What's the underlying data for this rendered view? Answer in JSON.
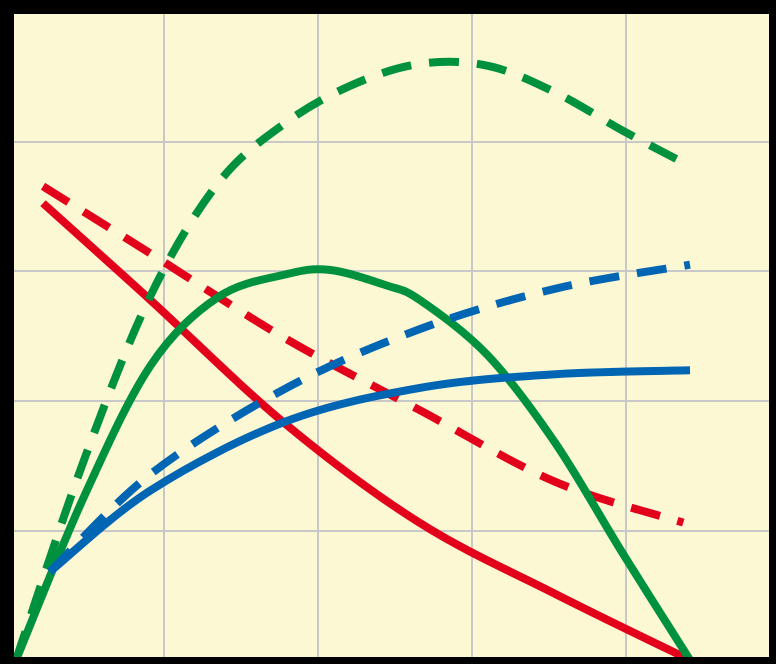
{
  "chart_data": {
    "type": "line",
    "title": "",
    "xlabel": "",
    "ylabel": "",
    "xlim": [
      0,
      1
    ],
    "ylim": [
      0,
      1
    ],
    "grid": true,
    "colors": {
      "background": "#fdf8d4",
      "grid": "#c8c8c8",
      "frame": "#000000",
      "red": "#e3001b",
      "green": "#00913f",
      "blue": "#0066b3"
    },
    "series": [
      {
        "color": "#e3001b",
        "style": "solid",
        "x": [
          0.04,
          0.2,
          0.4,
          0.6,
          0.8,
          1.0
        ],
        "y": [
          0.705,
          0.555,
          0.364,
          0.211,
          0.102,
          0.0
        ]
      },
      {
        "color": "#e3001b",
        "style": "dashed",
        "x": [
          0.04,
          0.2,
          0.4,
          0.6,
          0.8,
          0.99
        ],
        "y": [
          0.731,
          0.627,
          0.496,
          0.385,
          0.275,
          0.212
        ]
      },
      {
        "color": "#00913f",
        "style": "solid",
        "x": [
          0.0,
          0.1,
          0.2,
          0.3,
          0.4,
          0.465,
          0.55,
          0.6,
          0.7,
          0.8,
          0.9,
          1.0
        ],
        "y": [
          0.0,
          0.25,
          0.455,
          0.56,
          0.595,
          0.602,
          0.578,
          0.555,
          0.47,
          0.335,
          0.165,
          0.0
        ]
      },
      {
        "color": "#00913f",
        "style": "dashed",
        "x": [
          0.0,
          0.1,
          0.2,
          0.3,
          0.4,
          0.5,
          0.6,
          0.7,
          0.8,
          0.9,
          0.98
        ],
        "y": [
          0.0,
          0.306,
          0.563,
          0.736,
          0.829,
          0.888,
          0.92,
          0.917,
          0.876,
          0.817,
          0.773
        ]
      },
      {
        "color": "#0066b3",
        "style": "solid",
        "x": [
          0.05,
          0.2,
          0.4,
          0.6,
          0.8,
          1.0
        ],
        "y": [
          0.136,
          0.262,
          0.368,
          0.42,
          0.441,
          0.447
        ]
      },
      {
        "color": "#0066b3",
        "style": "dashed",
        "x": [
          0.05,
          0.2,
          0.4,
          0.6,
          0.8,
          1.0
        ],
        "y": [
          0.136,
          0.287,
          0.419,
          0.511,
          0.573,
          0.61
        ]
      }
    ]
  }
}
